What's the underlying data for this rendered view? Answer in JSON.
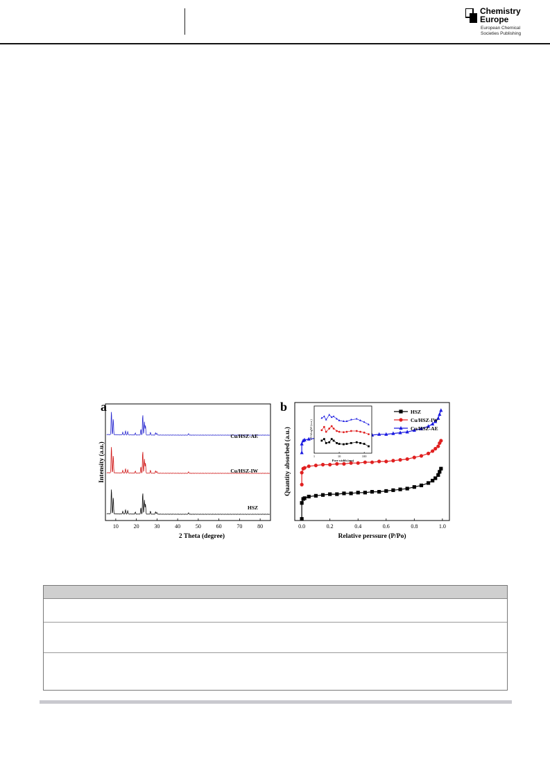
{
  "header": {
    "brand_line1": "Chemistry",
    "brand_line2": "Europe",
    "brand_sub1": "European Chemical",
    "brand_sub2": "Societies Publishing"
  },
  "figure": {
    "panel_a_letter": "a",
    "panel_b_letter": "b"
  },
  "chart_data": [
    {
      "type": "line",
      "panel": "a",
      "xlabel": "2 Theta (degree)",
      "ylabel": "Intensity (a.u.)",
      "xlim": [
        5,
        85
      ],
      "x_ticks": [
        10,
        20,
        30,
        40,
        50,
        60,
        70,
        80
      ],
      "y_ticks": [],
      "grid": false,
      "legend": "none",
      "series": [
        {
          "name": "Cu/HSZ-AE",
          "color": "#2a2ad0",
          "offset": 2.0,
          "peaks": [
            [
              7.9,
              0.75
            ],
            [
              8.8,
              0.5
            ],
            [
              13.4,
              0.08
            ],
            [
              14.7,
              0.12
            ],
            [
              15.8,
              0.1
            ],
            [
              19.5,
              0.06
            ],
            [
              22.2,
              0.18
            ],
            [
              23.1,
              0.65
            ],
            [
              23.9,
              0.42
            ],
            [
              24.4,
              0.3
            ],
            [
              26.8,
              0.08
            ],
            [
              29.3,
              0.07
            ],
            [
              29.9,
              0.06
            ],
            [
              45.3,
              0.05
            ]
          ]
        },
        {
          "name": "Cu/HSZ-IW",
          "color": "#d01818",
          "offset": 1.0,
          "peaks": [
            [
              7.9,
              0.85
            ],
            [
              8.8,
              0.55
            ],
            [
              13.4,
              0.08
            ],
            [
              14.7,
              0.13
            ],
            [
              15.8,
              0.1
            ],
            [
              19.5,
              0.06
            ],
            [
              22.2,
              0.2
            ],
            [
              23.1,
              0.7
            ],
            [
              23.9,
              0.45
            ],
            [
              24.4,
              0.32
            ],
            [
              26.8,
              0.09
            ],
            [
              29.3,
              0.07
            ],
            [
              29.9,
              0.06
            ],
            [
              45.3,
              0.05
            ]
          ]
        },
        {
          "name": "HSZ",
          "color": "#111111",
          "offset": 0.0,
          "peaks": [
            [
              7.9,
              0.8
            ],
            [
              8.8,
              0.52
            ],
            [
              13.4,
              0.08
            ],
            [
              14.7,
              0.13
            ],
            [
              15.8,
              0.1
            ],
            [
              19.5,
              0.06
            ],
            [
              22.2,
              0.2
            ],
            [
              23.1,
              0.68
            ],
            [
              23.9,
              0.45
            ],
            [
              24.4,
              0.32
            ],
            [
              26.8,
              0.09
            ],
            [
              29.3,
              0.07
            ],
            [
              29.9,
              0.06
            ],
            [
              45.3,
              0.05
            ]
          ]
        }
      ]
    },
    {
      "type": "line",
      "panel": "b",
      "xlabel": "Relative perssure (P/Po)",
      "ylabel": "Quantity absorbed (a.u.)",
      "xlim": [
        -0.05,
        1.05
      ],
      "x_ticks": [
        0.0,
        0.2,
        0.4,
        0.6,
        0.8,
        1.0
      ],
      "y_ticks": [],
      "grid": false,
      "legend": "top-right",
      "series": [
        {
          "name": "HSZ",
          "color": "#000000",
          "marker": "square",
          "x": [
            0.0,
            0.0,
            0.01,
            0.02,
            0.05,
            0.1,
            0.15,
            0.2,
            0.25,
            0.3,
            0.35,
            0.4,
            0.45,
            0.5,
            0.55,
            0.6,
            0.65,
            0.7,
            0.75,
            0.8,
            0.85,
            0.9,
            0.93,
            0.95,
            0.97,
            0.98,
            0.99
          ],
          "y": [
            0.02,
            0.22,
            0.27,
            0.28,
            0.3,
            0.31,
            0.32,
            0.33,
            0.33,
            0.34,
            0.34,
            0.35,
            0.35,
            0.36,
            0.36,
            0.37,
            0.38,
            0.39,
            0.4,
            0.42,
            0.44,
            0.47,
            0.5,
            0.53,
            0.57,
            0.61,
            0.65
          ]
        },
        {
          "name": "Cu/HSZ-IW",
          "color": "#e02020",
          "marker": "circle",
          "x": [
            0.0,
            0.0,
            0.01,
            0.02,
            0.05,
            0.1,
            0.15,
            0.2,
            0.25,
            0.3,
            0.35,
            0.4,
            0.45,
            0.5,
            0.55,
            0.6,
            0.65,
            0.7,
            0.75,
            0.8,
            0.85,
            0.9,
            0.93,
            0.95,
            0.97,
            0.98,
            0.99
          ],
          "y": [
            0.45,
            0.6,
            0.65,
            0.66,
            0.68,
            0.69,
            0.7,
            0.7,
            0.71,
            0.71,
            0.72,
            0.72,
            0.73,
            0.73,
            0.74,
            0.74,
            0.75,
            0.76,
            0.77,
            0.79,
            0.81,
            0.84,
            0.87,
            0.9,
            0.93,
            0.97,
            1.0
          ]
        },
        {
          "name": "Cu/HSZ-AE",
          "color": "#1a1ae0",
          "marker": "triangle",
          "x": [
            0.0,
            0.0,
            0.01,
            0.02,
            0.05,
            0.1,
            0.15,
            0.2,
            0.25,
            0.3,
            0.35,
            0.4,
            0.45,
            0.5,
            0.55,
            0.6,
            0.65,
            0.7,
            0.75,
            0.8,
            0.85,
            0.9,
            0.93,
            0.95,
            0.97,
            0.98,
            0.99
          ],
          "y": [
            0.85,
            0.96,
            1.0,
            1.01,
            1.02,
            1.03,
            1.04,
            1.04,
            1.05,
            1.05,
            1.06,
            1.06,
            1.07,
            1.07,
            1.08,
            1.08,
            1.09,
            1.1,
            1.11,
            1.13,
            1.15,
            1.18,
            1.21,
            1.24,
            1.28,
            1.33,
            1.38
          ]
        }
      ],
      "inset": {
        "xlabel": "Pore width (nm)",
        "ylabel": "dV/dlogW (a.u.)",
        "x_ticks": [
          "1",
          "10",
          "100"
        ],
        "series": [
          {
            "name": "Cu/HSZ-AE",
            "color": "#1a1ae0",
            "x": [
              2,
              2.5,
              3,
              4,
              5,
              6,
              8,
              10,
              15,
              20,
              30,
              50,
              70,
              100,
              150
            ],
            "y": [
              0.82,
              0.86,
              0.78,
              0.9,
              0.84,
              0.86,
              0.8,
              0.76,
              0.74,
              0.74,
              0.78,
              0.8,
              0.76,
              0.72,
              0.66
            ]
          },
          {
            "name": "Cu/HSZ-IW",
            "color": "#e02020",
            "x": [
              2,
              2.5,
              3,
              4,
              5,
              6,
              8,
              10,
              15,
              20,
              30,
              50,
              70,
              100,
              150
            ],
            "y": [
              0.52,
              0.6,
              0.48,
              0.56,
              0.62,
              0.56,
              0.5,
              0.48,
              0.47,
              0.48,
              0.5,
              0.5,
              0.48,
              0.46,
              0.42
            ]
          },
          {
            "name": "HSZ",
            "color": "#000000",
            "x": [
              2,
              2.5,
              3,
              4,
              5,
              6,
              8,
              10,
              15,
              20,
              30,
              50,
              70,
              100,
              150
            ],
            "y": [
              0.26,
              0.3,
              0.2,
              0.22,
              0.3,
              0.26,
              0.2,
              0.18,
              0.17,
              0.18,
              0.2,
              0.22,
              0.2,
              0.18,
              0.12
            ]
          }
        ]
      }
    }
  ]
}
